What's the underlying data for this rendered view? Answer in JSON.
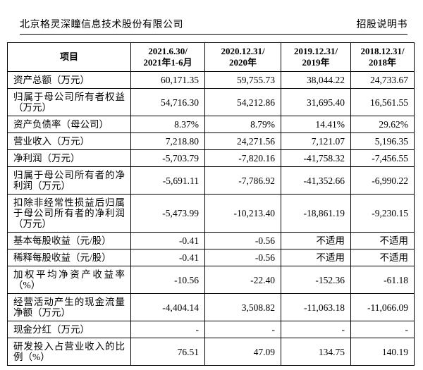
{
  "page_header": {
    "company_name": "北京格灵深瞳信息技术股份有限公司",
    "document_type": "招股说明书"
  },
  "table": {
    "columns": [
      "项目",
      "2021.6.30/\n2021年1-6月",
      "2020.12.31/\n2020年",
      "2019.12.31/\n2019年",
      "2018.12.31/\n2018年"
    ],
    "rows": [
      {
        "label": "资产总额（万元）",
        "values": [
          "60,171.35",
          "59,755.73",
          "38,044.22",
          "24,733.67"
        ]
      },
      {
        "label": "归属于母公司所有者权益（万元）",
        "values": [
          "54,716.30",
          "54,212.86",
          "31,695.40",
          "16,561.55"
        ]
      },
      {
        "label": "资产负债率（母公司）",
        "values": [
          "8.37%",
          "8.79%",
          "14.41%",
          "29.62%"
        ]
      },
      {
        "label": "营业收入（万元）",
        "values": [
          "7,218.80",
          "24,271.56",
          "7,121.07",
          "5,196.35"
        ]
      },
      {
        "label": "净利润（万元）",
        "values": [
          "-5,703.79",
          "-7,820.16",
          "-41,758.32",
          "-7,456.55"
        ]
      },
      {
        "label": "归属于母公司所有者的净利润（万元）",
        "values": [
          "-5,691.11",
          "-7,786.92",
          "-41,352.66",
          "-6,990.22"
        ]
      },
      {
        "label": "扣除非经常性损益后归属于母公司所有者的净利润（万元）",
        "values": [
          "-5,473.99",
          "-10,213.40",
          "-18,861.19",
          "-9,230.15"
        ]
      },
      {
        "label": "基本每股收益（元/股）",
        "values": [
          "-0.41",
          "-0.56",
          "不适用",
          "不适用"
        ]
      },
      {
        "label": "稀释每股收益（元/股）",
        "values": [
          "-0.41",
          "-0.56",
          "不适用",
          "不适用"
        ]
      },
      {
        "label": "加权平均净资产收益率（%）",
        "values": [
          "-10.56",
          "-22.40",
          "-152.36",
          "-61.18"
        ]
      },
      {
        "label": "经营活动产生的现金流量净额（万元）",
        "values": [
          "-4,404.14",
          "3,508.82",
          "-11,063.18",
          "-11,066.09"
        ]
      },
      {
        "label": "现金分红（万元）",
        "values": [
          "-",
          "-",
          "-",
          "-"
        ]
      },
      {
        "label": "研发投入占营业收入的比例（%）",
        "values": [
          "76.51",
          "47.09",
          "134.75",
          "140.19"
        ]
      }
    ]
  }
}
